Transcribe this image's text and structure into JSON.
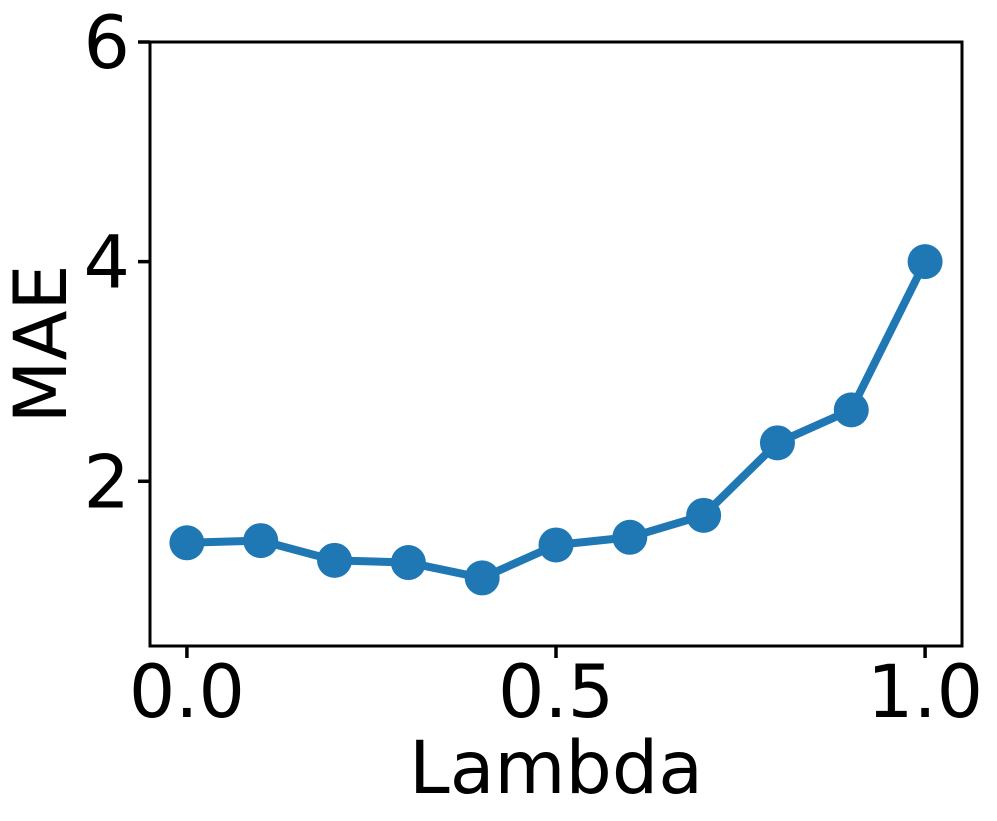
{
  "chart_data": {
    "type": "line",
    "title": "",
    "xlabel": "Lambda",
    "ylabel": "MAE",
    "x": [
      0.0,
      0.1,
      0.2,
      0.3,
      0.4,
      0.5,
      0.6,
      0.7,
      0.8,
      0.9,
      1.0
    ],
    "series": [
      {
        "name": "MAE",
        "values": [
          1.44,
          1.46,
          1.28,
          1.26,
          1.12,
          1.42,
          1.49,
          1.69,
          2.35,
          2.65,
          4.0
        ],
        "color": "#1f77b4",
        "marker": "circle"
      }
    ],
    "xlim": [
      -0.05,
      1.05
    ],
    "ylim": [
      0.5,
      6.0
    ],
    "xticks": {
      "values": [
        0.0,
        0.5,
        1.0
      ],
      "labels": [
        "0.0",
        "0.5",
        "1.0"
      ]
    },
    "yticks": {
      "values": [
        2,
        4,
        6
      ],
      "labels": [
        "2",
        "4",
        "6"
      ]
    },
    "grid": false,
    "legend_position": "none",
    "spine_color": "#000000",
    "background_color": "#ffffff"
  }
}
